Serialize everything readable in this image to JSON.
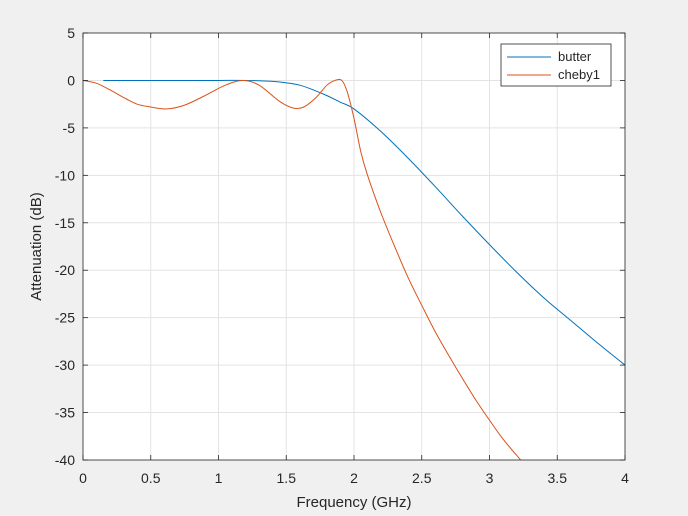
{
  "chart_data": {
    "type": "line",
    "title": "",
    "xlabel": "Frequency (GHz)",
    "ylabel": "Attenuation (dB)",
    "xlim": [
      0,
      4
    ],
    "ylim": [
      -40,
      5
    ],
    "xticks": [
      0,
      0.5,
      1,
      1.5,
      2,
      2.5,
      3,
      3.5,
      4
    ],
    "xtick_labels": [
      "0",
      "0.5",
      "1",
      "1.5",
      "2",
      "2.5",
      "3",
      "3.5",
      "4"
    ],
    "yticks": [
      5,
      0,
      -5,
      -10,
      -15,
      -20,
      -25,
      -30,
      -35,
      -40
    ],
    "ytick_labels": [
      "5",
      "0",
      "-5",
      "-10",
      "-15",
      "-20",
      "-25",
      "-30",
      "-35",
      "-40"
    ],
    "grid": true,
    "legend_position": "top-right",
    "series": [
      {
        "name": "butter",
        "color": "#0072bd",
        "x": [
          0.15,
          0.4,
          0.8,
          1.0,
          1.2,
          1.4,
          1.5,
          1.6,
          1.7,
          1.8,
          1.9,
          2.0,
          2.2,
          2.4,
          2.6,
          2.8,
          3.0,
          3.2,
          3.4,
          3.6,
          3.8,
          4.0
        ],
        "y": [
          0,
          0,
          0,
          0,
          0,
          -0.1,
          -0.25,
          -0.5,
          -1.0,
          -1.6,
          -2.3,
          -3.0,
          -5.4,
          -8.2,
          -11.2,
          -14.3,
          -17.3,
          -20.2,
          -22.9,
          -25.3,
          -27.7,
          -30.0
        ]
      },
      {
        "name": "cheby1",
        "color": "#d95319",
        "x": [
          0,
          0.1,
          0.2,
          0.3,
          0.4,
          0.5,
          0.62,
          0.75,
          0.9,
          1.05,
          1.18,
          1.3,
          1.45,
          1.55,
          1.63,
          1.72,
          1.8,
          1.86,
          1.91,
          1.95,
          2.0,
          2.05,
          2.1,
          2.2,
          2.3,
          2.4,
          2.5,
          2.6,
          2.7,
          2.8,
          2.9,
          3.0,
          3.1,
          3.23
        ],
        "y": [
          0,
          -0.3,
          -1.0,
          -1.8,
          -2.5,
          -2.8,
          -3.0,
          -2.6,
          -1.6,
          -0.5,
          0,
          -0.5,
          -2.2,
          -2.9,
          -2.8,
          -1.8,
          -0.5,
          0,
          0,
          -1.2,
          -4.0,
          -7.5,
          -10.0,
          -14.0,
          -17.5,
          -20.8,
          -23.7,
          -26.5,
          -29.0,
          -31.4,
          -33.7,
          -35.8,
          -37.8,
          -40.0
        ]
      }
    ]
  }
}
